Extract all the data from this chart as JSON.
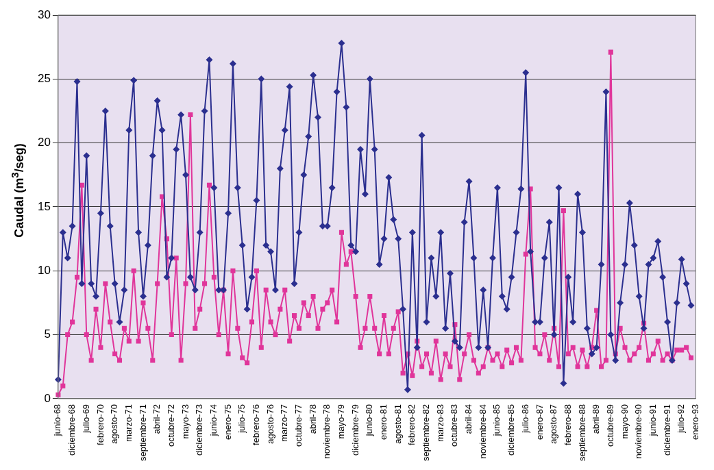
{
  "chart_data": {
    "type": "line",
    "ylabel": "Caudal (m$^{3}$/seg)",
    "ylim": [
      0,
      30
    ],
    "yticks": [
      0,
      5,
      10,
      15,
      20,
      25,
      30
    ],
    "grid": "y",
    "line_style": "solid",
    "categories": [
      "junio-68",
      null,
      null,
      "diciembre-68",
      null,
      null,
      "julio-69",
      null,
      null,
      "febrero-70",
      null,
      null,
      "agosto-70",
      null,
      null,
      "marzo-71",
      null,
      null,
      "septiembre-71",
      null,
      null,
      "abril-72",
      null,
      null,
      "octubre-72",
      null,
      null,
      "mayo-73",
      null,
      null,
      "diciembre-73",
      null,
      null,
      "junio-74",
      null,
      null,
      "enero-75",
      null,
      null,
      "julio-75",
      null,
      null,
      "febrero-76",
      null,
      null,
      "agosto-76",
      null,
      null,
      "marzo-77",
      null,
      null,
      "octubre-77",
      null,
      null,
      "abril-78",
      null,
      null,
      "noviembre-78",
      null,
      null,
      "mayo-79",
      null,
      null,
      "diciembre-79",
      null,
      null,
      "junio-80",
      null,
      null,
      "enero-81",
      null,
      null,
      "agosto-81",
      null,
      null,
      "febrero-82",
      null,
      null,
      "septiembre-82",
      null,
      null,
      "marzo-83",
      null,
      null,
      "octubre-83",
      null,
      null,
      "abril-84",
      null,
      null,
      "noviembre-84",
      null,
      null,
      "junio-85",
      null,
      null,
      "diciembre-85",
      null,
      null,
      "julio-86",
      null,
      null,
      "enero-87",
      null,
      null,
      "agosto-87",
      null,
      null,
      "febrero-88",
      null,
      null,
      "septiembre-88",
      null,
      null,
      "abril-89",
      null,
      null,
      "octubre-89",
      null,
      null,
      "mayo-90",
      null,
      null,
      "noviembre-90",
      null,
      null,
      "junio-91",
      null,
      null,
      "diciembre-91",
      null,
      null,
      "julio-92",
      null,
      null,
      "enero-93"
    ],
    "series": [
      {
        "color": "#2b2f8f",
        "marker": "diamond",
        "values": [
          1.5,
          13,
          11,
          13.5,
          24.8,
          9,
          19,
          9,
          8,
          14.5,
          22.5,
          13.5,
          9,
          6,
          8.5,
          21,
          24.9,
          13,
          8,
          12,
          19,
          23.3,
          21,
          9.5,
          11,
          19.5,
          22.2,
          17.5,
          9.5,
          8.5,
          13,
          22.5,
          26.5,
          16.5,
          8.5,
          8.5,
          14.5,
          26.2,
          16.5,
          12,
          7,
          9.5,
          15.5,
          25,
          12,
          11.5,
          8.5,
          18,
          21,
          24.4,
          9,
          13,
          17.5,
          20.5,
          25.3,
          22,
          13.5,
          13.5,
          16.5,
          24,
          27.8,
          22.8,
          12,
          11.5,
          19.5,
          16,
          25,
          19.5,
          10.5,
          12.5,
          17.3,
          14,
          12.5,
          7,
          0.7,
          13,
          4,
          20.6,
          6,
          11,
          8,
          13,
          5.5,
          9.8,
          4.5,
          4,
          13.8,
          17,
          11,
          4,
          8.5,
          4,
          11,
          16.5,
          8,
          7,
          9.5,
          13,
          16.4,
          25.5,
          11.5,
          6,
          6,
          11,
          13.8,
          5,
          16.5,
          1.2,
          9.5,
          6,
          16,
          13,
          5.5,
          3.5,
          4,
          10.5,
          24,
          5,
          3,
          7.5,
          10.5,
          15.3,
          12,
          8,
          5.5,
          10.5,
          11,
          12.3,
          9.5,
          6,
          3,
          7.5,
          10.9,
          9,
          7.3,
          null
        ]
      },
      {
        "color": "#e0359a",
        "marker": "square",
        "values": [
          0.3,
          1,
          5,
          6,
          9.5,
          16.7,
          5,
          3,
          7,
          4,
          9,
          6,
          3.5,
          3,
          5.5,
          4.5,
          10,
          4.5,
          7.5,
          5.5,
          3,
          9,
          15.8,
          12.5,
          5,
          11,
          3,
          9,
          22.2,
          5.5,
          7,
          9,
          16.7,
          9.5,
          5,
          8.5,
          3.5,
          10,
          5.5,
          3.2,
          2.8,
          6,
          10,
          4,
          8.5,
          6,
          5,
          7,
          8.5,
          4.5,
          6.5,
          5.5,
          7.5,
          6.5,
          8,
          5.5,
          7,
          7.5,
          8.5,
          6,
          13,
          10.5,
          11.5,
          8,
          4,
          5.5,
          8,
          5.5,
          3.5,
          6.5,
          3.5,
          5.5,
          6.8,
          2,
          3.5,
          1.8,
          4.5,
          2.5,
          3.5,
          2,
          4.5,
          1.5,
          3.5,
          2.5,
          5.8,
          1.5,
          3.5,
          5,
          3,
          2,
          2.5,
          4,
          3,
          3.5,
          2.5,
          3.8,
          2.8,
          4,
          3,
          11.3,
          16.4,
          4,
          3.5,
          5,
          3,
          5.5,
          2.5,
          14.7,
          3.5,
          4,
          2.5,
          3.8,
          2.5,
          4,
          6.9,
          2.5,
          3,
          27.1,
          3.5,
          5.5,
          4,
          3,
          3.5,
          4,
          5.9,
          3,
          3.5,
          4.5,
          3,
          3.5,
          3,
          3.8,
          3.8,
          4,
          3.2,
          null
        ]
      }
    ]
  }
}
